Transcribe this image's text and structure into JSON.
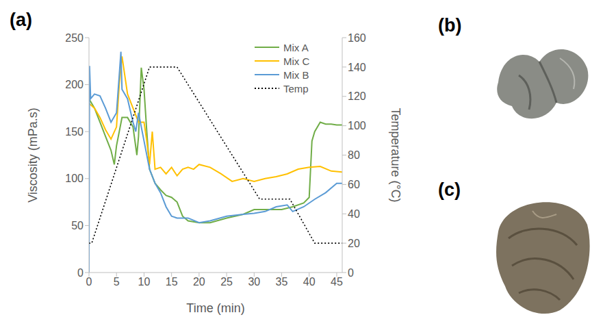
{
  "chart_data": {
    "type": "line",
    "panel_label": "(a)",
    "x_label": "Time (min)",
    "y_label": "Viscosity (mPa.s)",
    "y2_label": "Temperature (°C)",
    "xlim": [
      0,
      46
    ],
    "xticks": [
      0,
      5,
      10,
      15,
      20,
      25,
      30,
      35,
      40,
      45
    ],
    "ylim": [
      0,
      250
    ],
    "yticks": [
      0,
      50,
      100,
      150,
      200,
      250
    ],
    "y2lim": [
      0,
      160
    ],
    "y2ticks": [
      0,
      20,
      40,
      60,
      80,
      100,
      120,
      140,
      160
    ],
    "grid": false,
    "legend": "top-right",
    "series": [
      {
        "name": "Mix A",
        "color": "#70ad47",
        "line_style": "solid",
        "x": [
          0,
          1,
          2,
          3,
          4,
          4.6,
          5,
          6,
          7,
          8,
          8.7,
          9,
          9.5,
          10,
          10.5,
          11,
          12,
          13,
          14,
          15,
          16,
          17,
          18,
          20,
          22,
          25,
          28,
          30,
          32,
          35,
          37,
          39,
          40,
          40.5,
          41,
          42,
          43,
          44,
          45,
          46
        ],
        "values": [
          185,
          175,
          160,
          145,
          130,
          115,
          135,
          165,
          165,
          155,
          125,
          145,
          218,
          195,
          150,
          110,
          95,
          88,
          82,
          80,
          75,
          60,
          55,
          53,
          53,
          58,
          62,
          67,
          67,
          67,
          70,
          74,
          80,
          140,
          150,
          160,
          158,
          158,
          157,
          157
        ]
      },
      {
        "name": "Mix C",
        "color": "#ffc000",
        "line_style": "solid",
        "x": [
          0,
          1,
          2,
          3,
          4,
          5,
          5.5,
          6,
          6.5,
          7,
          8,
          9,
          10,
          10.5,
          11,
          11.5,
          12,
          13,
          14,
          15,
          16,
          17,
          18,
          19,
          20,
          22,
          24,
          26,
          28,
          30,
          32,
          34,
          36,
          38,
          40,
          42,
          44,
          46
        ],
        "values": [
          180,
          175,
          165,
          152,
          142,
          155,
          200,
          230,
          210,
          190,
          175,
          160,
          160,
          140,
          115,
          150,
          110,
          112,
          105,
          112,
          103,
          110,
          112,
          110,
          115,
          112,
          105,
          97,
          100,
          97,
          100,
          102,
          105,
          110,
          112,
          113,
          108,
          107
        ]
      },
      {
        "name": "Mix B",
        "color": "#5b9bd5",
        "line_style": "solid",
        "x": [
          0,
          0.1,
          0.3,
          1,
          2,
          3,
          4,
          5,
          5.5,
          5.8,
          6,
          7,
          8,
          8.5,
          9,
          10,
          11,
          12,
          13,
          14,
          15,
          16,
          18,
          20,
          22,
          25,
          28,
          30,
          32,
          34,
          36,
          37,
          39,
          41,
          43,
          45,
          46
        ],
        "values": [
          0,
          220,
          185,
          190,
          188,
          175,
          160,
          170,
          210,
          235,
          195,
          185,
          160,
          150,
          170,
          140,
          110,
          95,
          85,
          70,
          60,
          58,
          58,
          53,
          55,
          60,
          62,
          63,
          65,
          70,
          72,
          65,
          70,
          78,
          85,
          95,
          95
        ]
      },
      {
        "name": "Temp",
        "color": "#000000",
        "line_style": "dotted",
        "axis": "y2",
        "x": [
          0,
          0.5,
          11,
          16,
          31,
          36.5,
          41,
          46
        ],
        "values": [
          20,
          20,
          140,
          140,
          50,
          50,
          20,
          20
        ]
      }
    ]
  },
  "panels": [
    {
      "label": "(b)"
    },
    {
      "label": "(c)"
    }
  ]
}
